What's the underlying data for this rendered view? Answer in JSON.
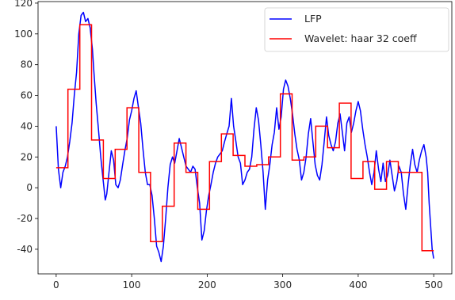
{
  "chart_data": {
    "type": "line",
    "title": "",
    "xlabel": "",
    "ylabel": "",
    "xlim": [
      -24,
      524
    ],
    "ylim": [
      -56,
      121
    ],
    "x_ticks": [
      0,
      100,
      200,
      300,
      400,
      500
    ],
    "y_ticks": [
      -40,
      -20,
      0,
      20,
      40,
      60,
      80,
      100,
      120
    ],
    "legend_position": "top-right",
    "grid": false,
    "series": [
      {
        "name": "LFP",
        "color": "#0000ff",
        "points": [
          [
            0,
            40
          ],
          [
            3,
            12
          ],
          [
            6,
            0
          ],
          [
            9,
            10
          ],
          [
            12,
            14
          ],
          [
            15,
            20
          ],
          [
            18,
            30
          ],
          [
            21,
            42
          ],
          [
            24,
            60
          ],
          [
            27,
            75
          ],
          [
            30,
            100
          ],
          [
            33,
            112
          ],
          [
            36,
            114
          ],
          [
            39,
            108
          ],
          [
            42,
            110
          ],
          [
            45,
            104
          ],
          [
            48,
            90
          ],
          [
            50,
            75
          ],
          [
            53,
            55
          ],
          [
            56,
            38
          ],
          [
            59,
            20
          ],
          [
            62,
            6
          ],
          [
            65,
            -8
          ],
          [
            67,
            -4
          ],
          [
            70,
            10
          ],
          [
            73,
            24
          ],
          [
            76,
            18
          ],
          [
            79,
            2
          ],
          [
            82,
            0
          ],
          [
            85,
            5
          ],
          [
            88,
            15
          ],
          [
            91,
            24
          ],
          [
            94,
            32
          ],
          [
            97,
            44
          ],
          [
            100,
            50
          ],
          [
            103,
            58
          ],
          [
            106,
            63
          ],
          [
            109,
            52
          ],
          [
            112,
            42
          ],
          [
            115,
            25
          ],
          [
            118,
            10
          ],
          [
            121,
            2
          ],
          [
            124,
            2
          ],
          [
            127,
            -5
          ],
          [
            130,
            -20
          ],
          [
            133,
            -38
          ],
          [
            136,
            -42
          ],
          [
            139,
            -48
          ],
          [
            142,
            -38
          ],
          [
            145,
            -20
          ],
          [
            148,
            0
          ],
          [
            151,
            15
          ],
          [
            154,
            20
          ],
          [
            157,
            16
          ],
          [
            160,
            24
          ],
          [
            163,
            32
          ],
          [
            166,
            26
          ],
          [
            169,
            20
          ],
          [
            172,
            14
          ],
          [
            175,
            12
          ],
          [
            178,
            10
          ],
          [
            181,
            14
          ],
          [
            184,
            12
          ],
          [
            187,
            0
          ],
          [
            190,
            -10
          ],
          [
            193,
            -34
          ],
          [
            196,
            -28
          ],
          [
            199,
            -15
          ],
          [
            202,
            -5
          ],
          [
            205,
            2
          ],
          [
            208,
            10
          ],
          [
            211,
            16
          ],
          [
            214,
            20
          ],
          [
            217,
            22
          ],
          [
            220,
            24
          ],
          [
            223,
            30
          ],
          [
            226,
            35
          ],
          [
            229,
            40
          ],
          [
            232,
            58
          ],
          [
            235,
            40
          ],
          [
            238,
            30
          ],
          [
            241,
            20
          ],
          [
            244,
            16
          ],
          [
            247,
            2
          ],
          [
            250,
            5
          ],
          [
            253,
            10
          ],
          [
            256,
            12
          ],
          [
            259,
            20
          ],
          [
            262,
            38
          ],
          [
            265,
            52
          ],
          [
            268,
            44
          ],
          [
            271,
            28
          ],
          [
            274,
            10
          ],
          [
            277,
            -14
          ],
          [
            280,
            5
          ],
          [
            283,
            15
          ],
          [
            286,
            28
          ],
          [
            289,
            36
          ],
          [
            292,
            52
          ],
          [
            295,
            38
          ],
          [
            298,
            46
          ],
          [
            301,
            64
          ],
          [
            304,
            70
          ],
          [
            307,
            66
          ],
          [
            310,
            58
          ],
          [
            313,
            48
          ],
          [
            316,
            35
          ],
          [
            319,
            25
          ],
          [
            322,
            18
          ],
          [
            325,
            5
          ],
          [
            328,
            10
          ],
          [
            331,
            20
          ],
          [
            334,
            35
          ],
          [
            337,
            45
          ],
          [
            340,
            30
          ],
          [
            343,
            15
          ],
          [
            346,
            8
          ],
          [
            349,
            5
          ],
          [
            352,
            15
          ],
          [
            355,
            30
          ],
          [
            358,
            46
          ],
          [
            361,
            34
          ],
          [
            364,
            28
          ],
          [
            367,
            24
          ],
          [
            370,
            30
          ],
          [
            373,
            42
          ],
          [
            376,
            48
          ],
          [
            379,
            36
          ],
          [
            382,
            24
          ],
          [
            385,
            42
          ],
          [
            388,
            46
          ],
          [
            391,
            36
          ],
          [
            394,
            42
          ],
          [
            397,
            50
          ],
          [
            400,
            56
          ],
          [
            403,
            50
          ],
          [
            406,
            38
          ],
          [
            409,
            28
          ],
          [
            412,
            20
          ],
          [
            415,
            10
          ],
          [
            418,
            2
          ],
          [
            421,
            10
          ],
          [
            424,
            24
          ],
          [
            427,
            12
          ],
          [
            430,
            4
          ],
          [
            433,
            16
          ],
          [
            436,
            4
          ],
          [
            439,
            8
          ],
          [
            442,
            18
          ],
          [
            445,
            8
          ],
          [
            448,
            -2
          ],
          [
            451,
            4
          ],
          [
            454,
            14
          ],
          [
            457,
            10
          ],
          [
            460,
            -4
          ],
          [
            463,
            -14
          ],
          [
            466,
            2
          ],
          [
            469,
            15
          ],
          [
            472,
            25
          ],
          [
            475,
            15
          ],
          [
            478,
            10
          ],
          [
            481,
            18
          ],
          [
            484,
            24
          ],
          [
            487,
            28
          ],
          [
            490,
            20
          ],
          [
            492,
            10
          ],
          [
            494,
            -10
          ],
          [
            496,
            -25
          ],
          [
            498,
            -40
          ],
          [
            500,
            -46
          ]
        ]
      },
      {
        "name": "Wavelet: haar 32 coeff",
        "color": "#ff0000",
        "steps": [
          [
            0,
            15.6,
            13
          ],
          [
            15.6,
            31.3,
            64
          ],
          [
            31.3,
            46.9,
            106
          ],
          [
            46.9,
            62.5,
            31
          ],
          [
            62.5,
            78.1,
            6
          ],
          [
            78.1,
            93.8,
            25
          ],
          [
            93.8,
            109.4,
            52
          ],
          [
            109.4,
            125,
            10
          ],
          [
            125,
            140.6,
            -35
          ],
          [
            140.6,
            156.3,
            -12
          ],
          [
            156.3,
            171.9,
            29
          ],
          [
            171.9,
            187.5,
            10
          ],
          [
            187.5,
            203.1,
            -14
          ],
          [
            203.1,
            218.8,
            17
          ],
          [
            218.8,
            234.4,
            35
          ],
          [
            234.4,
            250,
            21
          ],
          [
            250,
            265.6,
            14
          ],
          [
            265.6,
            281.3,
            15
          ],
          [
            281.3,
            296.9,
            20
          ],
          [
            296.9,
            312.5,
            61
          ],
          [
            312.5,
            328.1,
            18
          ],
          [
            328.1,
            343.8,
            20
          ],
          [
            343.8,
            359.4,
            40
          ],
          [
            359.4,
            375,
            26
          ],
          [
            375,
            390.6,
            55
          ],
          [
            390.6,
            406.3,
            6
          ],
          [
            406.3,
            421.9,
            17
          ],
          [
            421.9,
            437.5,
            -1
          ],
          [
            437.5,
            453.1,
            17
          ],
          [
            453.1,
            468.8,
            10
          ],
          [
            468.8,
            484.4,
            10
          ],
          [
            484.4,
            500,
            -41
          ]
        ]
      }
    ]
  }
}
